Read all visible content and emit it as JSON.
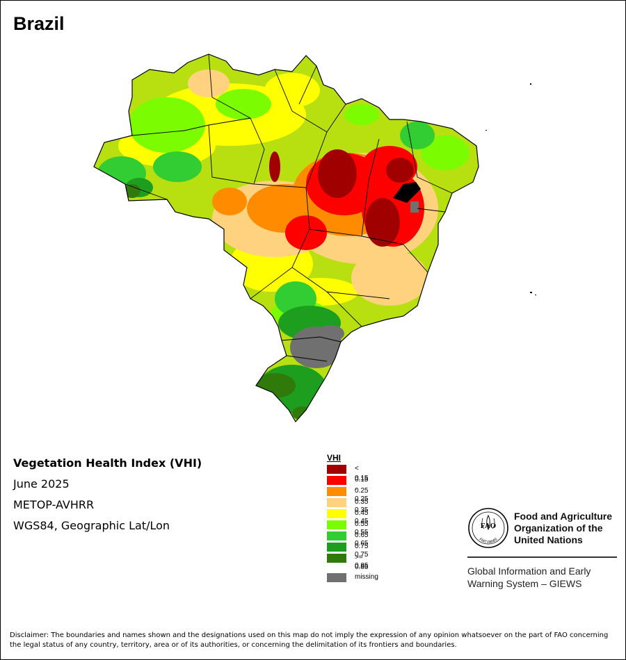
{
  "title": "Brazil",
  "info": {
    "indicator": "Vegetation Health Index (VHI)",
    "period": "June 2025",
    "sensor": "METOP-AVHRR",
    "projection": "WGS84, Geographic Lat/Lon"
  },
  "legend": {
    "title": "VHI",
    "classes": [
      {
        "label": "< 0.15",
        "color": "#a00000"
      },
      {
        "label": "0.15 - 0.25",
        "color": "#ff0000"
      },
      {
        "label": "0.25 - 0.35",
        "color": "#ff8c00"
      },
      {
        "label": "0.35 - 0.45",
        "color": "#ffd27f"
      },
      {
        "label": "0.45 - 0.55",
        "color": "#ffff00"
      },
      {
        "label": "0.55 - 0.65",
        "color": "#7cfc00"
      },
      {
        "label": "0.65 - 0.75",
        "color": "#32cd32"
      },
      {
        "label": "0.75 - 0.85",
        "color": "#1e9e1e"
      },
      {
        "label": ">= 0.85",
        "color": "#2f7a0a"
      }
    ],
    "missing": {
      "label": "missing",
      "color": "#707070"
    }
  },
  "logo": {
    "acronym": "FAO",
    "motto": "FIAT PANIS"
  },
  "organization": {
    "line1": "Food and Agriculture",
    "line2": "Organization of the",
    "line3": "United Nations"
  },
  "giews": {
    "line1": "Global Information and Early",
    "line2": "Warning System – GIEWS"
  },
  "disclaimer": "Disclaimer: The boundaries and names shown and the designations used on this map do not imply the expression of any opinion whatsoever on the part of FAO concerning the legal status of any country, territory, area or of its authorities, or concerning the delimitation of its frontiers and boundaries."
}
